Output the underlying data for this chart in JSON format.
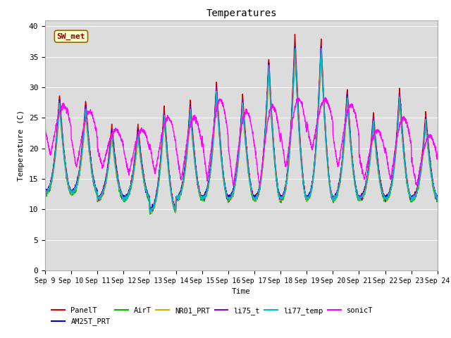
{
  "title": "Temperatures",
  "xlabel": "Time",
  "ylabel": "Temperature (C)",
  "ylim": [
    0,
    41
  ],
  "yticks": [
    0,
    5,
    10,
    15,
    20,
    25,
    30,
    35,
    40
  ],
  "bg_color": "#dcdcdc",
  "annotation_text": "SW_met",
  "annotation_box_color": "#ffffcc",
  "annotation_box_edge": "#996600",
  "series_order": [
    "PanelT",
    "AM25T_PRT",
    "AirT",
    "NR01_PRT",
    "li75_t",
    "li77_temp",
    "sonicT"
  ],
  "series": {
    "PanelT": {
      "color": "#cc0000",
      "lw": 1.0
    },
    "AM25T_PRT": {
      "color": "#0000cc",
      "lw": 1.0
    },
    "AirT": {
      "color": "#00bb00",
      "lw": 1.0
    },
    "NR01_PRT": {
      "color": "#ddaa00",
      "lw": 1.0
    },
    "li75_t": {
      "color": "#9900bb",
      "lw": 1.0
    },
    "li77_temp": {
      "color": "#00bbcc",
      "lw": 1.0
    },
    "sonicT": {
      "color": "#ff00ff",
      "lw": 1.0
    }
  },
  "x_tick_labels": [
    "Sep 9",
    "Sep 10",
    "Sep 11",
    "Sep 12",
    "Sep 13",
    "Sep 14",
    "Sep 15",
    "Sep 16",
    "Sep 17",
    "Sep 18",
    "Sep 19",
    "Sep 20",
    "Sep 21",
    "Sep 22",
    "Sep 23",
    "Sep 24"
  ],
  "n_days": 16,
  "figsize": [
    6.4,
    4.8
  ],
  "dpi": 100
}
